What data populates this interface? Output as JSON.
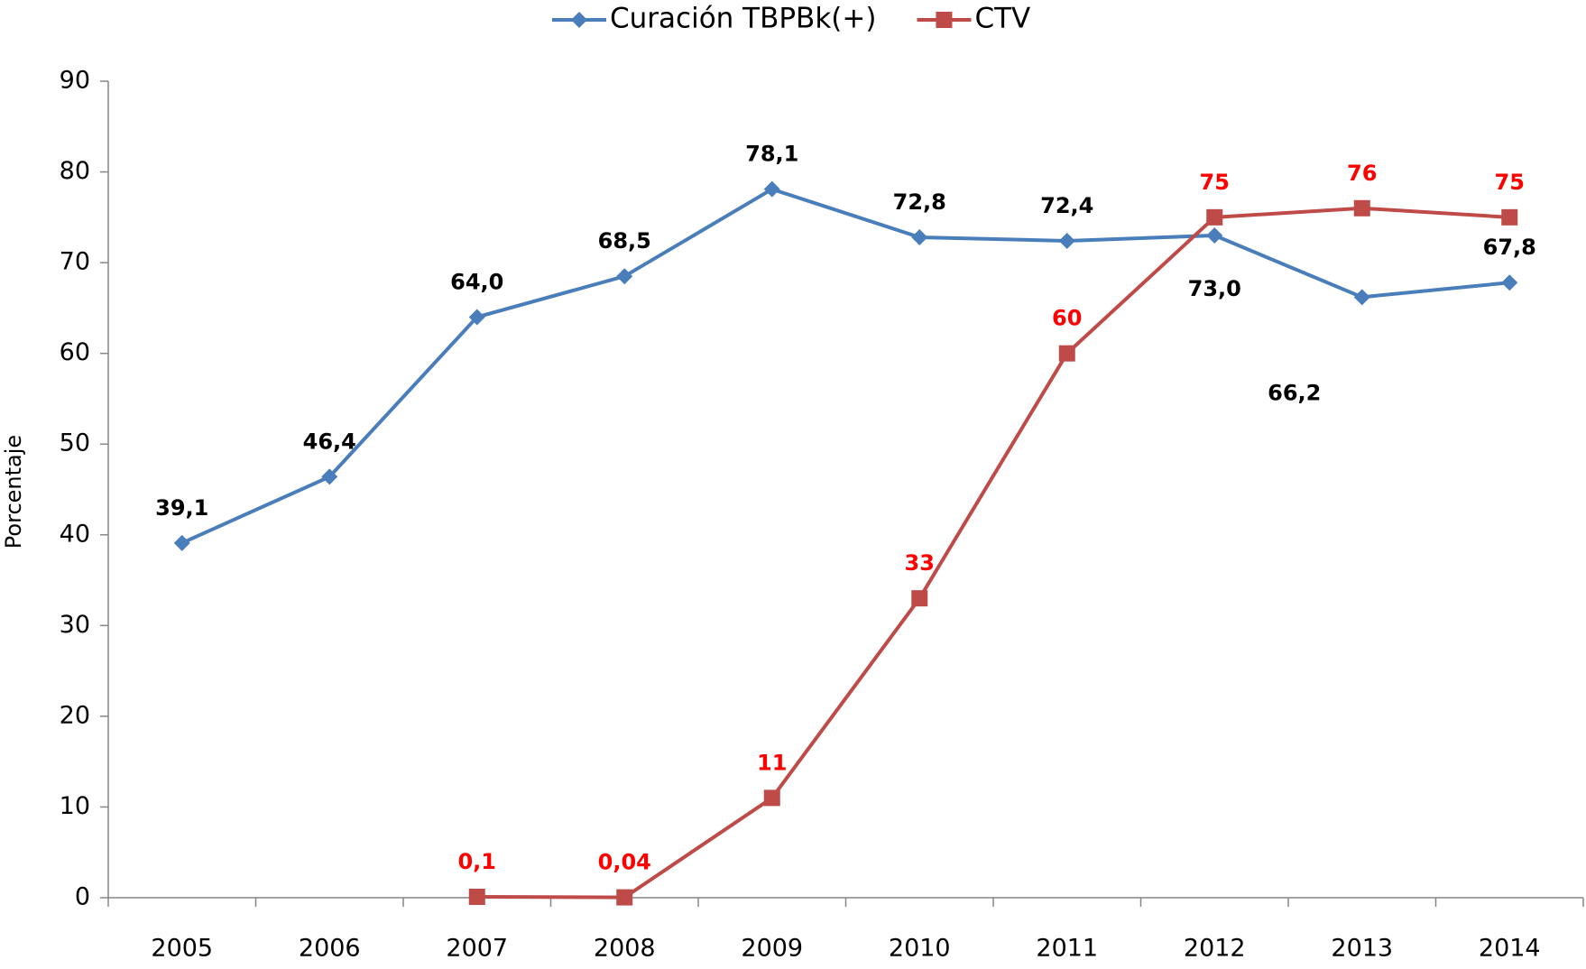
{
  "chart_data": {
    "type": "line",
    "y_label": "Porcentaje",
    "categories": [
      "2005",
      "2006",
      "2007",
      "2008",
      "2009",
      "2010",
      "2011",
      "2012",
      "2013",
      "2014"
    ],
    "series": [
      {
        "name": "Curación TBPBk(+)",
        "color": "#4a7ebb",
        "marker": "diamond",
        "values": [
          39.1,
          46.4,
          64.0,
          68.5,
          78.1,
          72.8,
          72.4,
          73.0,
          66.2,
          67.8
        ],
        "value_labels": [
          "39,1",
          "46,4",
          "64,0",
          "68,5",
          "78,1",
          "72,8",
          "72,4",
          "73,0",
          "66,2",
          "67,8"
        ],
        "label_color": "#000000"
      },
      {
        "name": "CTV",
        "color": "#be4b48",
        "marker": "square",
        "values": [
          null,
          null,
          0.1,
          0.04,
          11,
          33,
          60,
          75,
          76,
          75
        ],
        "value_labels": [
          null,
          null,
          "0,1",
          "0,04",
          "11",
          "33",
          "60",
          "75",
          "76",
          "75"
        ],
        "label_color": "#ff0000"
      }
    ],
    "ylim": [
      0,
      90
    ],
    "yticks": [
      0,
      10,
      20,
      30,
      40,
      50,
      60,
      70,
      80,
      90
    ],
    "grid": false,
    "legend": "top"
  }
}
